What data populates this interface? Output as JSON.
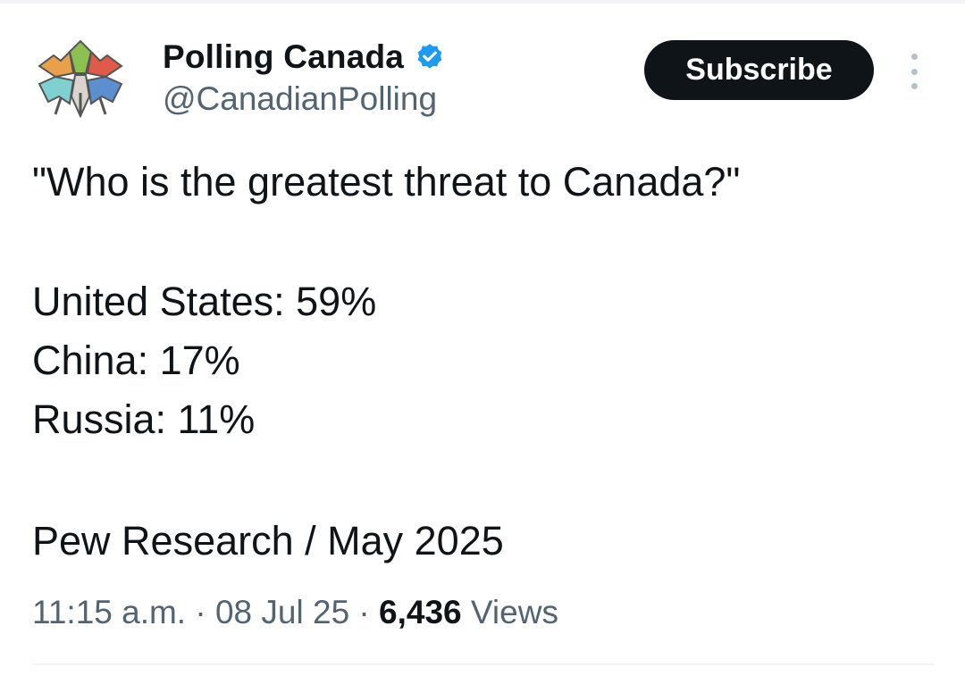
{
  "header": {
    "display_name": "Polling Canada",
    "handle": "@CanadianPolling",
    "subscribe_label": "Subscribe",
    "verified_icon": "verified-badge-icon",
    "more_icon": "more-options-icon",
    "colors": {
      "text": "#0f1419",
      "muted": "#536471",
      "verified": "#1d9bf0",
      "button_bg": "#0f1419"
    }
  },
  "tweet": {
    "question": "\"Who is the greatest threat to Canada?\"",
    "results": [
      "United States: 59%",
      "China: 17%",
      "Russia: 11%"
    ],
    "source": "Pew Research / May 2025"
  },
  "meta": {
    "time": "11:15 a.m.",
    "separator": " · ",
    "date": "08 Jul 25",
    "views_count": "6,436",
    "views_label": "Views"
  }
}
